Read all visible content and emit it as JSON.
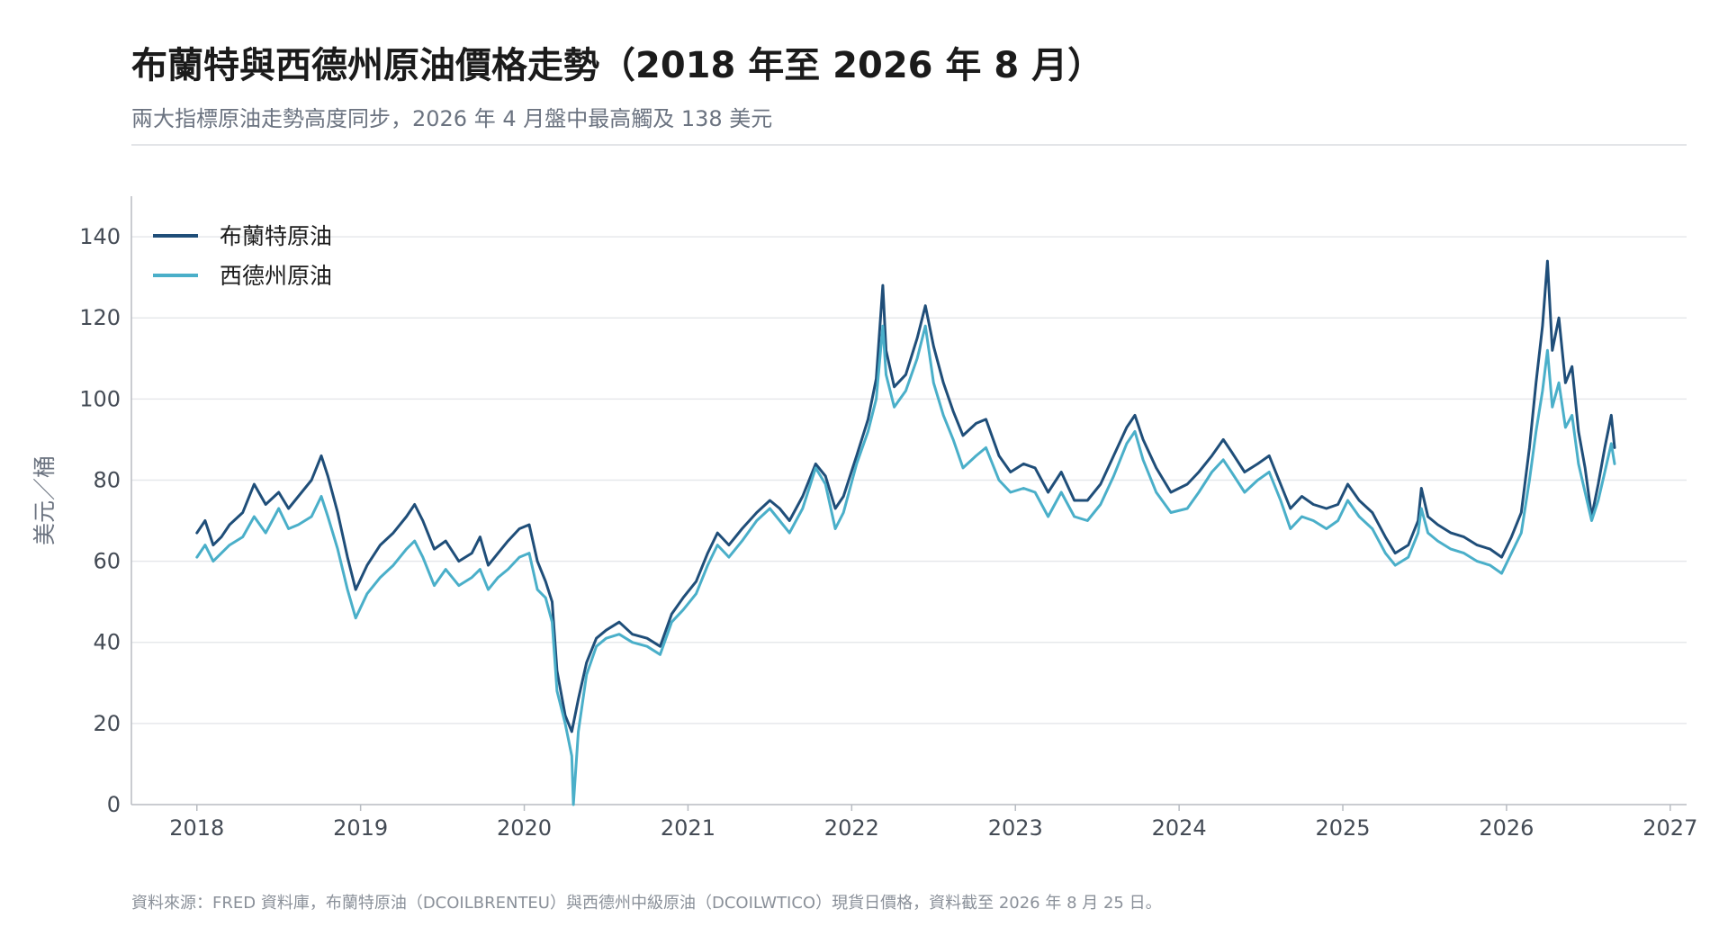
{
  "header": {
    "title": "布蘭特與西德州原油價格走勢（2018 年至 2026 年 8 月）",
    "subtitle": "兩大指標原油走勢高度同步，2026 年 4 月盤中最高觸及 138 美元"
  },
  "footer": {
    "source": "資料來源：FRED 資料庫，布蘭特原油（DCOILBRENTEU）與西德州中級原油（DCOILWTICO）現貨日價格，資料截至 2026 年 8 月 25 日。"
  },
  "colors": {
    "brent": "#1f4e79",
    "wti": "#4aafc9",
    "grid": "#e6e8eb",
    "axis": "#b8bcc2"
  },
  "chart_data": {
    "type": "line",
    "ylabel": "美元／桶",
    "xlabel": "",
    "ylim": [
      0,
      150
    ],
    "xlim": [
      2017.6,
      2027.1
    ],
    "grid": true,
    "legend_position": "top-left",
    "y_ticks": [
      0,
      20,
      40,
      60,
      80,
      100,
      120,
      140
    ],
    "x_ticks": [
      2018,
      2019,
      2020,
      2021,
      2022,
      2023,
      2024,
      2025,
      2026,
      2027
    ],
    "series": [
      {
        "name": "布蘭特原油",
        "color": "#1f4e79",
        "points": [
          [
            2018.0,
            67
          ],
          [
            2018.05,
            70
          ],
          [
            2018.1,
            64
          ],
          [
            2018.15,
            66
          ],
          [
            2018.2,
            69
          ],
          [
            2018.28,
            72
          ],
          [
            2018.35,
            79
          ],
          [
            2018.42,
            74
          ],
          [
            2018.5,
            77
          ],
          [
            2018.56,
            73
          ],
          [
            2018.62,
            76
          ],
          [
            2018.7,
            80
          ],
          [
            2018.76,
            86
          ],
          [
            2018.8,
            81
          ],
          [
            2018.86,
            72
          ],
          [
            2018.92,
            61
          ],
          [
            2018.97,
            53
          ],
          [
            2019.04,
            59
          ],
          [
            2019.12,
            64
          ],
          [
            2019.2,
            67
          ],
          [
            2019.28,
            71
          ],
          [
            2019.33,
            74
          ],
          [
            2019.38,
            70
          ],
          [
            2019.45,
            63
          ],
          [
            2019.52,
            65
          ],
          [
            2019.6,
            60
          ],
          [
            2019.68,
            62
          ],
          [
            2019.73,
            66
          ],
          [
            2019.78,
            59
          ],
          [
            2019.84,
            62
          ],
          [
            2019.9,
            65
          ],
          [
            2019.97,
            68
          ],
          [
            2020.03,
            69
          ],
          [
            2020.08,
            60
          ],
          [
            2020.13,
            55
          ],
          [
            2020.17,
            50
          ],
          [
            2020.2,
            33
          ],
          [
            2020.25,
            22
          ],
          [
            2020.29,
            18
          ],
          [
            2020.33,
            26
          ],
          [
            2020.38,
            35
          ],
          [
            2020.44,
            41
          ],
          [
            2020.5,
            43
          ],
          [
            2020.58,
            45
          ],
          [
            2020.66,
            42
          ],
          [
            2020.75,
            41
          ],
          [
            2020.83,
            39
          ],
          [
            2020.9,
            47
          ],
          [
            2020.97,
            51
          ],
          [
            2021.05,
            55
          ],
          [
            2021.12,
            62
          ],
          [
            2021.18,
            67
          ],
          [
            2021.25,
            64
          ],
          [
            2021.33,
            68
          ],
          [
            2021.42,
            72
          ],
          [
            2021.5,
            75
          ],
          [
            2021.56,
            73
          ],
          [
            2021.62,
            70
          ],
          [
            2021.7,
            76
          ],
          [
            2021.78,
            84
          ],
          [
            2021.84,
            81
          ],
          [
            2021.9,
            73
          ],
          [
            2021.95,
            76
          ],
          [
            2022.03,
            86
          ],
          [
            2022.1,
            95
          ],
          [
            2022.15,
            105
          ],
          [
            2022.19,
            128
          ],
          [
            2022.21,
            112
          ],
          [
            2022.26,
            103
          ],
          [
            2022.33,
            106
          ],
          [
            2022.4,
            115
          ],
          [
            2022.45,
            123
          ],
          [
            2022.5,
            113
          ],
          [
            2022.56,
            104
          ],
          [
            2022.62,
            97
          ],
          [
            2022.68,
            91
          ],
          [
            2022.76,
            94
          ],
          [
            2022.82,
            95
          ],
          [
            2022.9,
            86
          ],
          [
            2022.97,
            82
          ],
          [
            2023.05,
            84
          ],
          [
            2023.12,
            83
          ],
          [
            2023.2,
            77
          ],
          [
            2023.28,
            82
          ],
          [
            2023.36,
            75
          ],
          [
            2023.44,
            75
          ],
          [
            2023.52,
            79
          ],
          [
            2023.6,
            86
          ],
          [
            2023.68,
            93
          ],
          [
            2023.73,
            96
          ],
          [
            2023.78,
            90
          ],
          [
            2023.86,
            83
          ],
          [
            2023.95,
            77
          ],
          [
            2024.05,
            79
          ],
          [
            2024.12,
            82
          ],
          [
            2024.2,
            86
          ],
          [
            2024.27,
            90
          ],
          [
            2024.32,
            87
          ],
          [
            2024.4,
            82
          ],
          [
            2024.48,
            84
          ],
          [
            2024.55,
            86
          ],
          [
            2024.62,
            79
          ],
          [
            2024.68,
            73
          ],
          [
            2024.75,
            76
          ],
          [
            2024.82,
            74
          ],
          [
            2024.9,
            73
          ],
          [
            2024.97,
            74
          ],
          [
            2025.03,
            79
          ],
          [
            2025.1,
            75
          ],
          [
            2025.18,
            72
          ],
          [
            2025.26,
            66
          ],
          [
            2025.32,
            62
          ],
          [
            2025.4,
            64
          ],
          [
            2025.46,
            70
          ],
          [
            2025.48,
            78
          ],
          [
            2025.52,
            71
          ],
          [
            2025.58,
            69
          ],
          [
            2025.66,
            67
          ],
          [
            2025.74,
            66
          ],
          [
            2025.82,
            64
          ],
          [
            2025.9,
            63
          ],
          [
            2025.97,
            61
          ],
          [
            2026.03,
            66
          ],
          [
            2026.09,
            72
          ],
          [
            2026.14,
            88
          ],
          [
            2026.18,
            104
          ],
          [
            2026.22,
            118
          ],
          [
            2026.25,
            134
          ],
          [
            2026.28,
            112
          ],
          [
            2026.32,
            120
          ],
          [
            2026.36,
            104
          ],
          [
            2026.4,
            108
          ],
          [
            2026.44,
            92
          ],
          [
            2026.48,
            83
          ],
          [
            2026.52,
            71
          ],
          [
            2026.56,
            79
          ],
          [
            2026.6,
            88
          ],
          [
            2026.64,
            96
          ],
          [
            2026.66,
            88
          ]
        ]
      },
      {
        "name": "西德州原油",
        "color": "#4aafc9",
        "points": [
          [
            2018.0,
            61
          ],
          [
            2018.05,
            64
          ],
          [
            2018.1,
            60
          ],
          [
            2018.15,
            62
          ],
          [
            2018.2,
            64
          ],
          [
            2018.28,
            66
          ],
          [
            2018.35,
            71
          ],
          [
            2018.42,
            67
          ],
          [
            2018.5,
            73
          ],
          [
            2018.56,
            68
          ],
          [
            2018.62,
            69
          ],
          [
            2018.7,
            71
          ],
          [
            2018.76,
            76
          ],
          [
            2018.8,
            71
          ],
          [
            2018.86,
            63
          ],
          [
            2018.92,
            53
          ],
          [
            2018.97,
            46
          ],
          [
            2019.04,
            52
          ],
          [
            2019.12,
            56
          ],
          [
            2019.2,
            59
          ],
          [
            2019.28,
            63
          ],
          [
            2019.33,
            65
          ],
          [
            2019.38,
            61
          ],
          [
            2019.45,
            54
          ],
          [
            2019.52,
            58
          ],
          [
            2019.6,
            54
          ],
          [
            2019.68,
            56
          ],
          [
            2019.73,
            58
          ],
          [
            2019.78,
            53
          ],
          [
            2019.84,
            56
          ],
          [
            2019.9,
            58
          ],
          [
            2019.97,
            61
          ],
          [
            2020.03,
            62
          ],
          [
            2020.08,
            53
          ],
          [
            2020.13,
            51
          ],
          [
            2020.17,
            45
          ],
          [
            2020.2,
            28
          ],
          [
            2020.25,
            20
          ],
          [
            2020.29,
            12
          ],
          [
            2020.3,
            0
          ],
          [
            2020.33,
            18
          ],
          [
            2020.38,
            32
          ],
          [
            2020.44,
            39
          ],
          [
            2020.5,
            41
          ],
          [
            2020.58,
            42
          ],
          [
            2020.66,
            40
          ],
          [
            2020.75,
            39
          ],
          [
            2020.83,
            37
          ],
          [
            2020.9,
            45
          ],
          [
            2020.97,
            48
          ],
          [
            2021.05,
            52
          ],
          [
            2021.12,
            59
          ],
          [
            2021.18,
            64
          ],
          [
            2021.25,
            61
          ],
          [
            2021.33,
            65
          ],
          [
            2021.42,
            70
          ],
          [
            2021.5,
            73
          ],
          [
            2021.56,
            70
          ],
          [
            2021.62,
            67
          ],
          [
            2021.7,
            73
          ],
          [
            2021.78,
            83
          ],
          [
            2021.84,
            79
          ],
          [
            2021.9,
            68
          ],
          [
            2021.95,
            72
          ],
          [
            2022.03,
            84
          ],
          [
            2022.1,
            92
          ],
          [
            2022.15,
            100
          ],
          [
            2022.19,
            118
          ],
          [
            2022.21,
            106
          ],
          [
            2022.26,
            98
          ],
          [
            2022.33,
            102
          ],
          [
            2022.4,
            110
          ],
          [
            2022.45,
            118
          ],
          [
            2022.5,
            104
          ],
          [
            2022.56,
            96
          ],
          [
            2022.62,
            90
          ],
          [
            2022.68,
            83
          ],
          [
            2022.76,
            86
          ],
          [
            2022.82,
            88
          ],
          [
            2022.9,
            80
          ],
          [
            2022.97,
            77
          ],
          [
            2023.05,
            78
          ],
          [
            2023.12,
            77
          ],
          [
            2023.2,
            71
          ],
          [
            2023.28,
            77
          ],
          [
            2023.36,
            71
          ],
          [
            2023.44,
            70
          ],
          [
            2023.52,
            74
          ],
          [
            2023.6,
            81
          ],
          [
            2023.68,
            89
          ],
          [
            2023.73,
            92
          ],
          [
            2023.78,
            85
          ],
          [
            2023.86,
            77
          ],
          [
            2023.95,
            72
          ],
          [
            2024.05,
            73
          ],
          [
            2024.12,
            77
          ],
          [
            2024.2,
            82
          ],
          [
            2024.27,
            85
          ],
          [
            2024.32,
            82
          ],
          [
            2024.4,
            77
          ],
          [
            2024.48,
            80
          ],
          [
            2024.55,
            82
          ],
          [
            2024.62,
            75
          ],
          [
            2024.68,
            68
          ],
          [
            2024.75,
            71
          ],
          [
            2024.82,
            70
          ],
          [
            2024.9,
            68
          ],
          [
            2024.97,
            70
          ],
          [
            2025.03,
            75
          ],
          [
            2025.1,
            71
          ],
          [
            2025.18,
            68
          ],
          [
            2025.26,
            62
          ],
          [
            2025.32,
            59
          ],
          [
            2025.4,
            61
          ],
          [
            2025.46,
            67
          ],
          [
            2025.48,
            73
          ],
          [
            2025.52,
            67
          ],
          [
            2025.58,
            65
          ],
          [
            2025.66,
            63
          ],
          [
            2025.74,
            62
          ],
          [
            2025.82,
            60
          ],
          [
            2025.9,
            59
          ],
          [
            2025.97,
            57
          ],
          [
            2026.03,
            62
          ],
          [
            2026.09,
            67
          ],
          [
            2026.14,
            80
          ],
          [
            2026.18,
            92
          ],
          [
            2026.22,
            102
          ],
          [
            2026.25,
            112
          ],
          [
            2026.28,
            98
          ],
          [
            2026.32,
            104
          ],
          [
            2026.36,
            93
          ],
          [
            2026.4,
            96
          ],
          [
            2026.44,
            84
          ],
          [
            2026.48,
            77
          ],
          [
            2026.52,
            70
          ],
          [
            2026.56,
            75
          ],
          [
            2026.6,
            82
          ],
          [
            2026.64,
            89
          ],
          [
            2026.66,
            84
          ]
        ]
      }
    ]
  }
}
